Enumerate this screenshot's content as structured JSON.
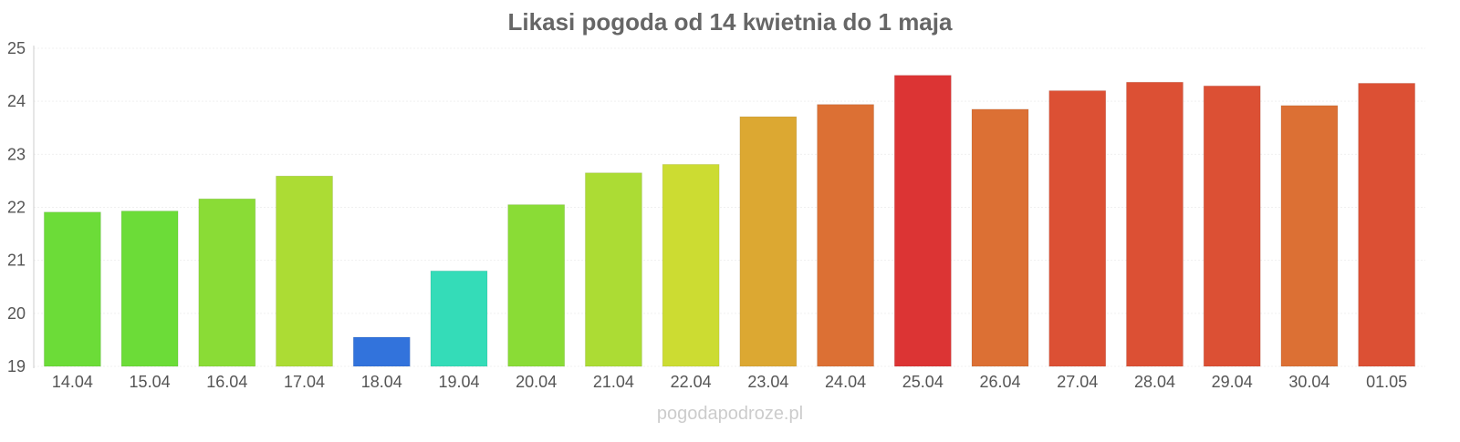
{
  "chart_data": {
    "type": "bar",
    "title": "Likasi pogoda od 14 kwietnia do 1 maja",
    "xlabel": "",
    "ylabel": "",
    "ylim": [
      19,
      25
    ],
    "yticks": [
      "19",
      "20",
      "21",
      "22",
      "23",
      "24",
      "25"
    ],
    "grid": true,
    "categories": [
      "14.04",
      "15.04",
      "16.04",
      "17.04",
      "18.04",
      "19.04",
      "20.04",
      "21.04",
      "22.04",
      "23.04",
      "24.04",
      "25.04",
      "26.04",
      "27.04",
      "28.04",
      "29.04",
      "30.04",
      "01.05"
    ],
    "values": [
      21.91,
      21.93,
      22.16,
      22.59,
      19.55,
      20.8,
      22.05,
      22.65,
      22.81,
      23.71,
      23.94,
      24.49,
      23.85,
      24.2,
      24.36,
      24.29,
      23.92,
      24.34
    ],
    "colors": [
      "#6cdc38",
      "#6cdc38",
      "#8adc36",
      "#acdc34",
      "#3273dc",
      "#34dcb8",
      "#8adc36",
      "#acdc34",
      "#ccdc32",
      "#dca832",
      "#dc7034",
      "#dc3434",
      "#dc7034",
      "#dc5034",
      "#dc5034",
      "#dc5034",
      "#dc7034",
      "#dc5034"
    ],
    "watermark": "pogodapodroze.pl"
  }
}
